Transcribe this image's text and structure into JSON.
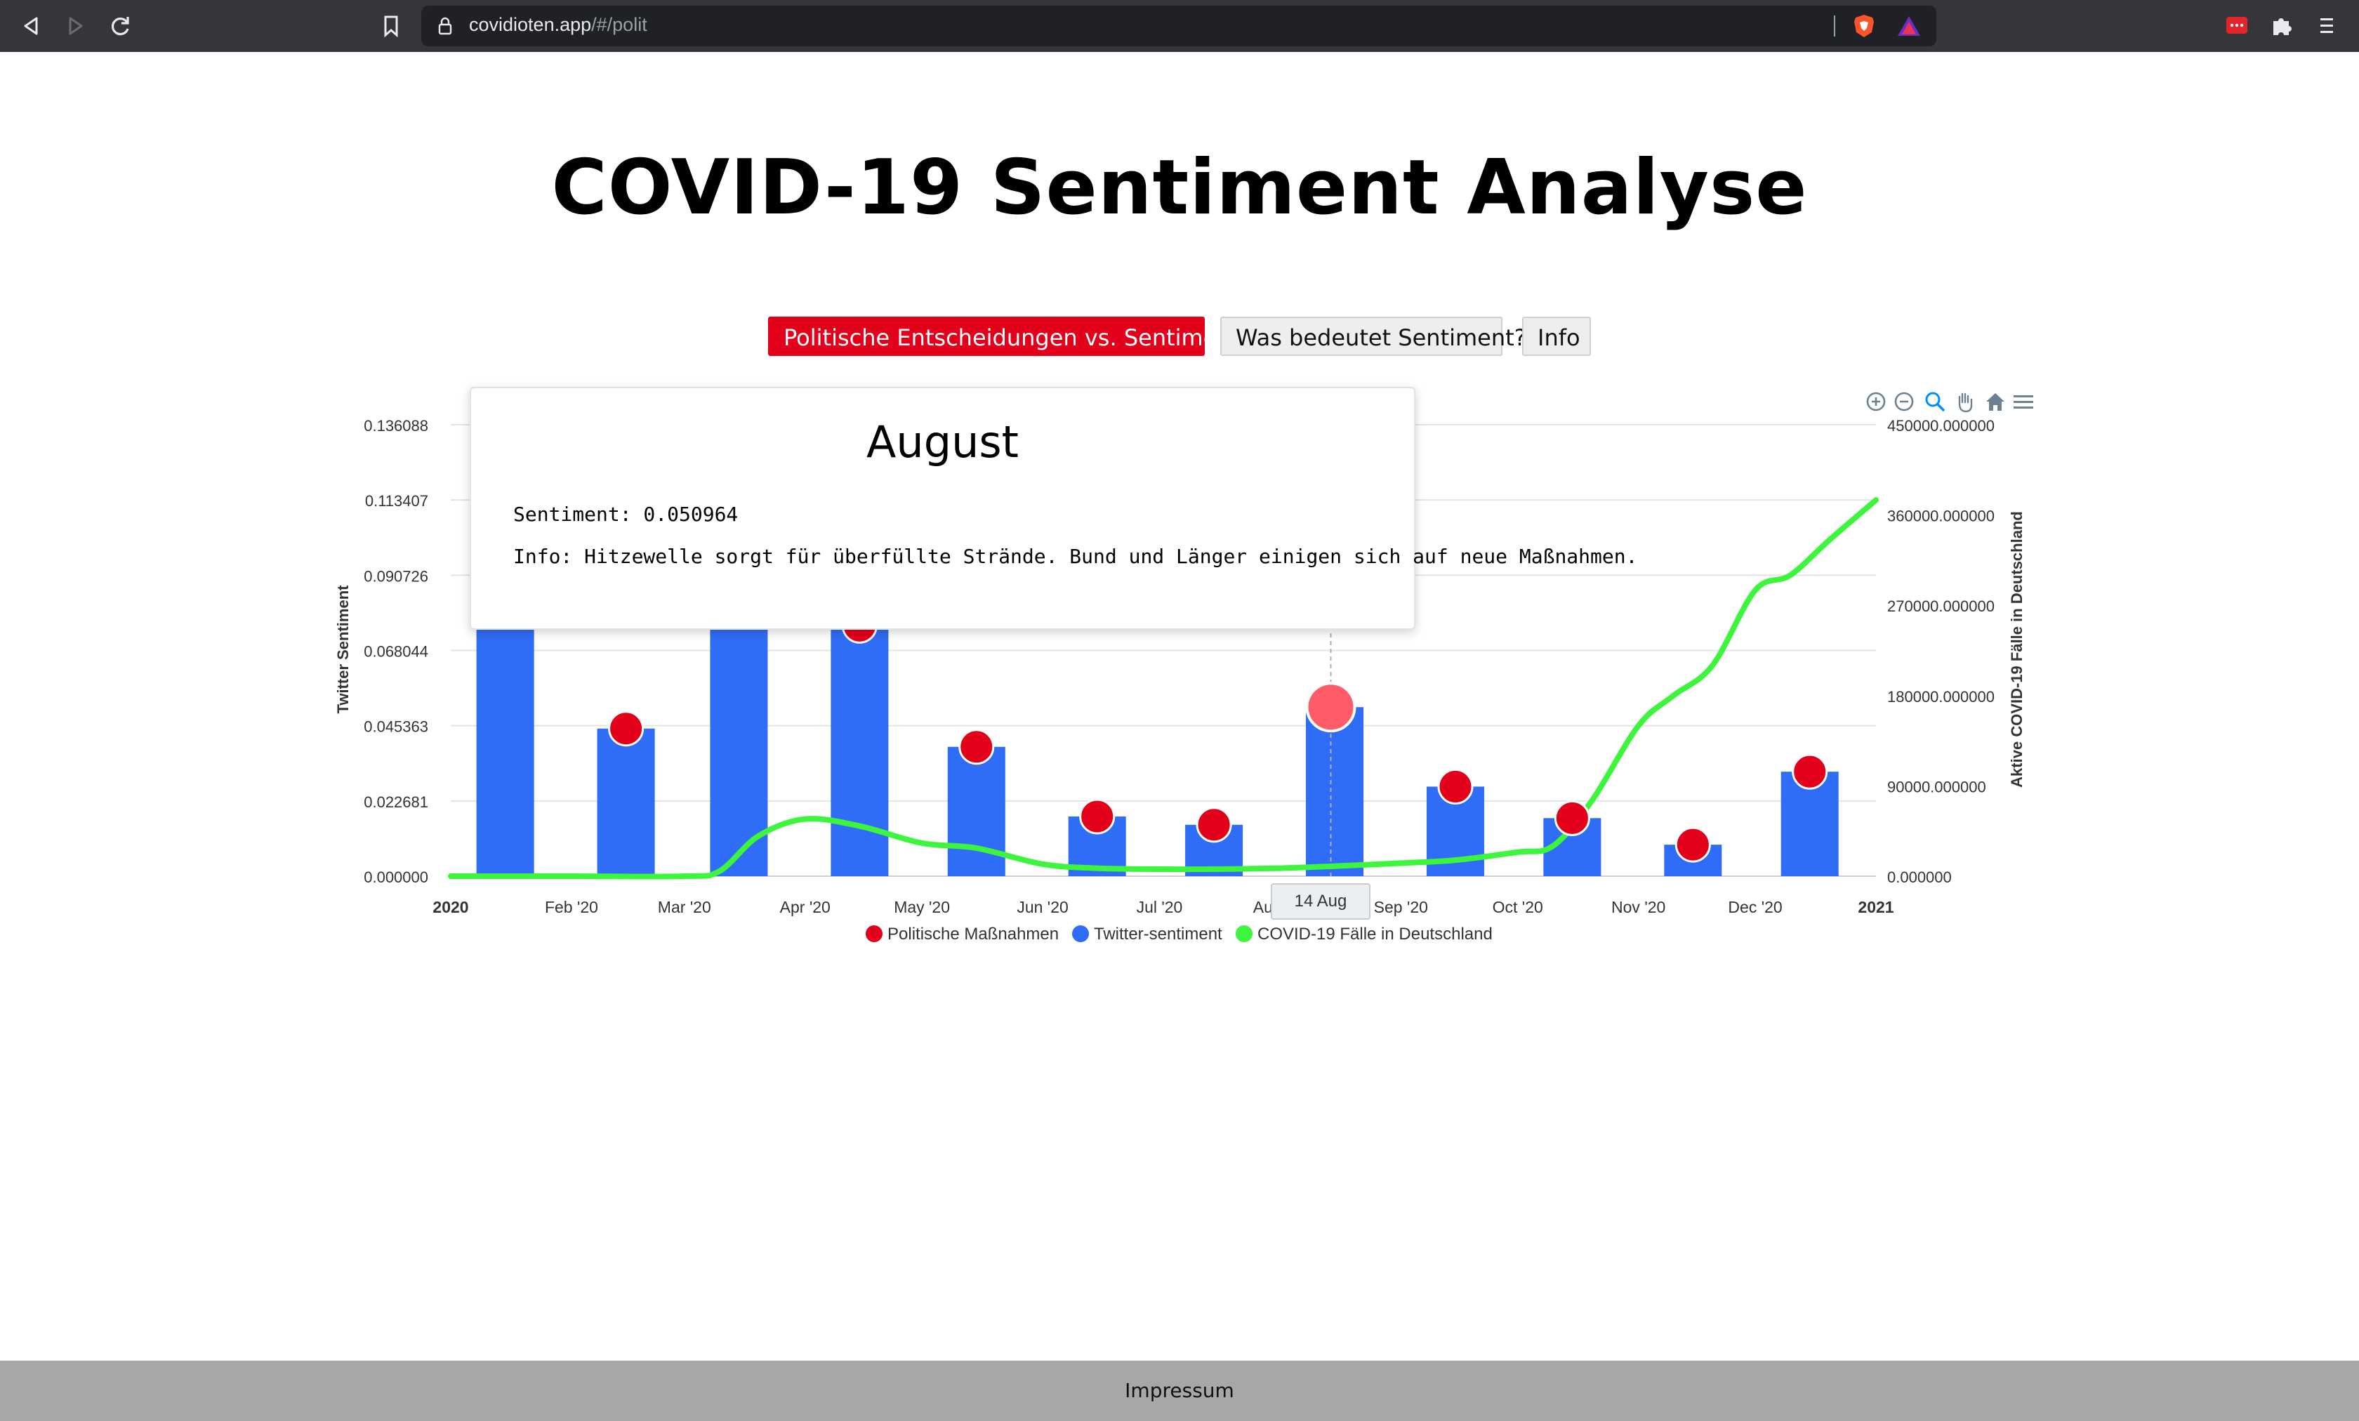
{
  "browser": {
    "url_host": "covidioten.app",
    "url_path": "/#/polit"
  },
  "page": {
    "title": "COVID-19 Sentiment Analyse"
  },
  "tabs": [
    {
      "label": "Politische Entscheidungen vs. Sentiment",
      "active": true
    },
    {
      "label": "Was bedeutet Sentiment?",
      "active": false
    },
    {
      "label": "Info",
      "active": false
    }
  ],
  "toolbar": {
    "icons": [
      "zoom-in-icon",
      "zoom-out-icon",
      "selection-zoom-icon",
      "pan-hand-icon",
      "home-reset-icon",
      "menu-icon"
    ]
  },
  "tooltip": {
    "title": "August",
    "sentiment_line": "Sentiment: 0.050964",
    "info_line": "Info: Hitzewelle sorgt für überfüllte Strände. Bund und Länger einigen sich auf neue Maßnahmen."
  },
  "crosshair_label": "14 Aug",
  "footer": {
    "link": "Impressum"
  },
  "colors": {
    "accent_red": "#e3001b",
    "bar_blue": "#2f6df6",
    "marker_red": "#e3001b",
    "line_green": "#3ef53e"
  },
  "chart_data": {
    "type": "bar",
    "y_left_label": "Twitter Sentiment",
    "y_right_label": "Aktive COVID-19 Fälle in Deutschland",
    "x_ticks": [
      "2020",
      "Feb '20",
      "Mar '20",
      "Apr '20",
      "May '20",
      "Jun '20",
      "Jul '20",
      "Aug '20",
      "Sep '20",
      "Oct '20",
      "Nov '20",
      "Dec '20",
      "2021"
    ],
    "y_left_ticks": [
      "0.000000",
      "0.022681",
      "0.045363",
      "0.068044",
      "0.090726",
      "0.113407",
      "0.136088"
    ],
    "y_right_ticks": [
      "0.000000",
      "90000.000000",
      "180000.000000",
      "270000.000000",
      "360000.000000",
      "450000.000000"
    ],
    "y_left_range": [
      0,
      0.136088
    ],
    "y_right_range": [
      0,
      450000
    ],
    "grid": true,
    "legend_position": "bottom",
    "legend": [
      {
        "name": "Politische Maßnahmen",
        "color": "#e3001b"
      },
      {
        "name": "Twitter-sentiment",
        "color": "#2f6df6"
      },
      {
        "name": "COVID-19 Fälle in Deutschland",
        "color": "#3ef53e"
      }
    ],
    "series": [
      {
        "name": "Twitter-sentiment",
        "kind": "bar",
        "x": [
          "2020-01-15",
          "2020-02-15",
          "2020-03-15",
          "2020-04-15",
          "2020-05-15",
          "2020-06-15",
          "2020-07-15",
          "2020-08-15",
          "2020-09-15",
          "2020-10-15",
          "2020-11-15",
          "2020-12-15"
        ],
        "values": [
          0.0915,
          0.0445,
          0.1125,
          0.0755,
          0.039,
          0.018,
          0.0155,
          0.050964,
          0.027,
          0.0175,
          0.0095,
          0.0315
        ]
      },
      {
        "name": "Politische Maßnahmen",
        "kind": "marker",
        "x": [
          "2020-01-15",
          "2020-02-15",
          "2020-03-15",
          "2020-04-15",
          "2020-05-15",
          "2020-06-15",
          "2020-07-15",
          "2020-08-14",
          "2020-09-15",
          "2020-10-15",
          "2020-11-15",
          "2020-12-15"
        ],
        "values": [
          0.0915,
          0.0445,
          0.1125,
          0.0755,
          0.039,
          0.018,
          0.0155,
          0.050964,
          0.027,
          0.0175,
          0.0095,
          0.0315
        ]
      },
      {
        "name": "COVID-19 Fälle in Deutschland",
        "kind": "line",
        "x": [
          "2020-01-01",
          "2020-02-01",
          "2020-03-01",
          "2020-03-10",
          "2020-03-20",
          "2020-04-01",
          "2020-04-15",
          "2020-05-01",
          "2020-05-15",
          "2020-06-01",
          "2020-06-15",
          "2020-07-01",
          "2020-07-15",
          "2020-08-01",
          "2020-08-15",
          "2020-09-01",
          "2020-09-15",
          "2020-10-01",
          "2020-10-10",
          "2020-10-20",
          "2020-11-01",
          "2020-11-10",
          "2020-11-20",
          "2020-12-01",
          "2020-12-10",
          "2020-12-20",
          "2021-01-01"
        ],
        "values": [
          0,
          0,
          0,
          5000,
          40000,
          57000,
          50000,
          33000,
          28000,
          12000,
          8000,
          7000,
          7000,
          8000,
          10000,
          13000,
          16000,
          24000,
          30000,
          75000,
          150000,
          180000,
          210000,
          285000,
          300000,
          335000,
          375000
        ]
      }
    ]
  }
}
